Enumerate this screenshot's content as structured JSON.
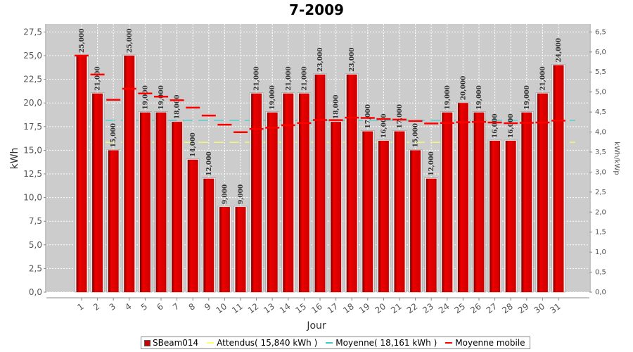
{
  "chart_data": {
    "type": "bar",
    "title": "7-2009",
    "xlabel": "Jour",
    "ylabel": "kWh",
    "y2label": "kWh/kWp",
    "ylim": [
      0,
      28.35
    ],
    "y2lim": [
      0,
      6.7
    ],
    "yticks": [
      "0,0",
      "2,5",
      "5,0",
      "7,5",
      "10,0",
      "12,5",
      "15,0",
      "17,5",
      "20,0",
      "22,5",
      "25,0",
      "27,5"
    ],
    "y2ticks": [
      "0,0",
      "0,5",
      "1,0",
      "1,5",
      "2,0",
      "2,5",
      "3,0",
      "3,5",
      "4,0",
      "4,5",
      "5,0",
      "5,5",
      "6,0",
      "6,5"
    ],
    "categories": [
      "1",
      "2",
      "3",
      "4",
      "5",
      "6",
      "7",
      "8",
      "9",
      "10",
      "11",
      "12",
      "13",
      "14",
      "15",
      "16",
      "17",
      "18",
      "19",
      "20",
      "21",
      "22",
      "23",
      "24",
      "25",
      "26",
      "27",
      "28",
      "29",
      "30",
      "31"
    ],
    "series": [
      {
        "name": "SBeam014",
        "values": [
          25,
          21,
          15,
          25,
          19,
          19,
          18,
          14,
          12,
          9,
          9,
          21,
          19,
          21,
          21,
          23,
          18,
          23,
          17,
          16,
          17,
          15,
          12,
          19,
          20,
          19,
          16,
          16,
          19,
          21,
          24
        ],
        "labels": [
          "25,000",
          "21,000",
          "15,000",
          "25,000",
          "19,000",
          "19,000",
          "18,000",
          "14,000",
          "12,000",
          "9,000",
          "9,000",
          "21,000",
          "19,000",
          "21,000",
          "21,000",
          "23,000",
          "18,000",
          "23,000",
          "17,000",
          "16,000",
          "17,000",
          "15,000",
          "12,000",
          "19,000",
          "20,000",
          "19,000",
          "16,000",
          "16,000",
          "19,000",
          "21,000",
          "24,000"
        ]
      },
      {
        "name": "Moyenne mobile",
        "values": [
          25.0,
          23.0,
          20.33,
          21.5,
          21.0,
          20.67,
          20.29,
          19.5,
          18.67,
          17.7,
          16.91,
          17.25,
          17.38,
          17.64,
          17.87,
          18.19,
          18.18,
          18.44,
          18.42,
          18.3,
          18.24,
          18.09,
          17.83,
          17.88,
          17.96,
          18.0,
          17.93,
          17.86,
          17.9,
          17.93,
          18.13
        ]
      }
    ],
    "reference_lines": [
      {
        "name": "Attendus( 15,840 kWh )",
        "value": 15.84,
        "color": "#ffff66"
      },
      {
        "name": "Moyenne( 18,161 kWh )",
        "value": 18.161,
        "color": "#33cccc"
      }
    ],
    "grid": true,
    "legend_position": "bottom"
  },
  "legend": [
    {
      "label": "SBeam014",
      "kind": "box",
      "color": "#cc0000"
    },
    {
      "label": "Attendus( 15,840 kWh )",
      "kind": "line",
      "color": "#ffff66"
    },
    {
      "label": "Moyenne( 18,161 kWh )",
      "kind": "line",
      "color": "#33cccc"
    },
    {
      "label": "Moyenne mobile",
      "kind": "line",
      "color": "#ff0000"
    }
  ]
}
